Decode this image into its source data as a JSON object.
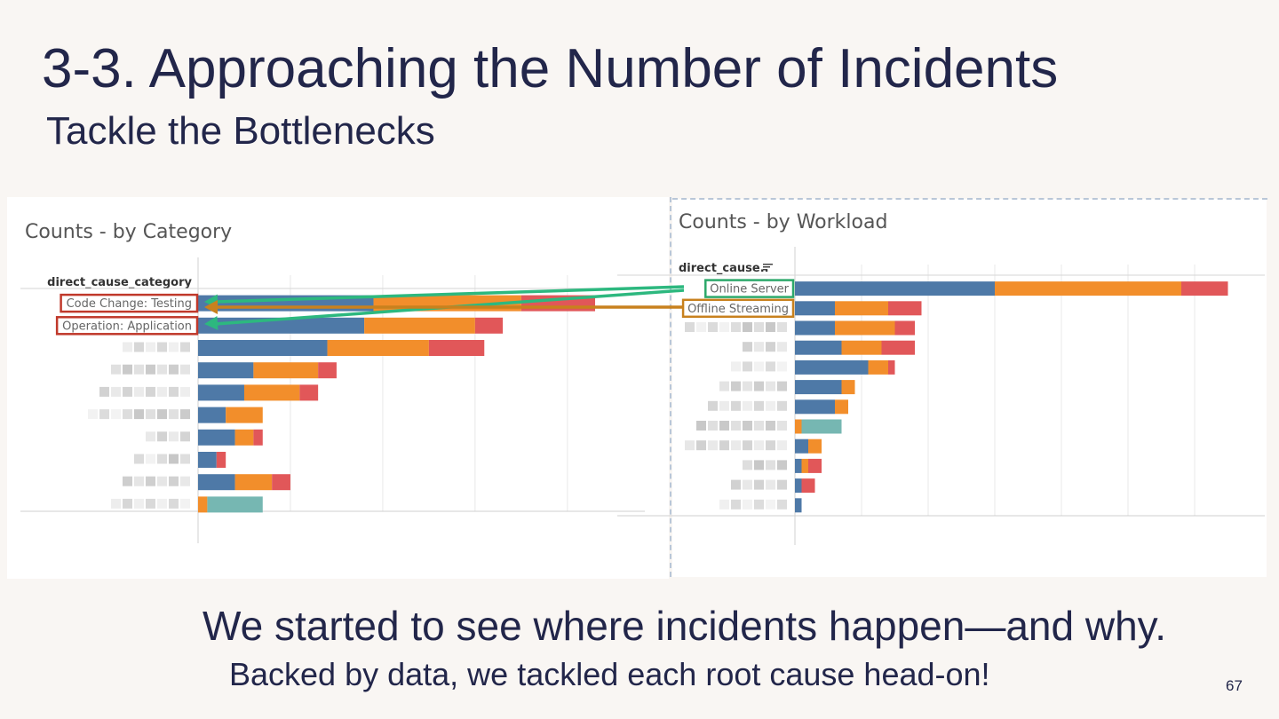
{
  "slide": {
    "title": "3-3. Approaching the Number of Incidents",
    "subtitle": "Tackle the Bottlenecks",
    "footer_line1": "We started to see where incidents happen—and why.",
    "footer_line2": "Backed by data, we tackled each root cause head-on!",
    "page_number": "67"
  },
  "colors": {
    "blue": "#4e79a7",
    "orange": "#f28e2b",
    "red": "#e15759",
    "teal": "#76b7b2",
    "highlight_red": "#c0392b",
    "highlight_green": "#2ca86a",
    "highlight_orange": "#c8811e",
    "arrow_green": "#2db87f",
    "arrow_orange": "#c8811e"
  },
  "chart_data": [
    {
      "type": "bar",
      "stacked": true,
      "orientation": "horizontal",
      "title": "Counts - by Category",
      "row_header": "direct_cause_category",
      "categories": [
        "Code Change: Testing",
        "Operation: Application",
        "",
        "",
        "",
        "",
        "",
        "",
        "",
        ""
      ],
      "series": [
        {
          "color": "blue",
          "values": [
            19.0,
            18.0,
            14.0,
            6.0,
            5.0,
            3.0,
            4.0,
            2.0,
            4.0,
            0.0
          ]
        },
        {
          "color": "orange",
          "values": [
            16.0,
            12.0,
            11.0,
            7.0,
            6.0,
            4.0,
            2.0,
            0.0,
            4.0,
            1.0
          ]
        },
        {
          "color": "red",
          "values": [
            8.0,
            3.0,
            6.0,
            2.0,
            2.0,
            0.0,
            1.0,
            1.0,
            2.0,
            0.0
          ]
        },
        {
          "color": "teal",
          "values": [
            0.0,
            0.0,
            0.0,
            0.0,
            0.0,
            0.0,
            0.0,
            0.0,
            0.0,
            6.0
          ]
        }
      ],
      "xlim": [
        0,
        48
      ],
      "gridlines_x": [
        10,
        20,
        30,
        40
      ],
      "grid": true,
      "highlighted": [
        "Code Change: Testing",
        "Operation: Application"
      ]
    },
    {
      "type": "bar",
      "stacked": true,
      "orientation": "horizontal",
      "title": "Counts - by Workload",
      "row_header": "direct_cause..",
      "categories": [
        "Online Server",
        "Offline Streaming",
        "",
        "",
        "",
        "",
        "",
        "",
        "",
        "",
        "",
        ""
      ],
      "series": [
        {
          "color": "blue",
          "values": [
            30.0,
            6.0,
            6.0,
            7.0,
            11.0,
            7.0,
            6.0,
            0.0,
            2.0,
            1.0,
            1.0,
            1.0
          ]
        },
        {
          "color": "orange",
          "values": [
            28.0,
            8.0,
            9.0,
            6.0,
            3.0,
            2.0,
            2.0,
            1.0,
            2.0,
            1.0,
            0.0,
            0.0
          ]
        },
        {
          "color": "red",
          "values": [
            7.0,
            5.0,
            3.0,
            5.0,
            1.0,
            0.0,
            0.0,
            0.0,
            0.0,
            2.0,
            2.0,
            0.0
          ]
        },
        {
          "color": "teal",
          "values": [
            0.0,
            0.0,
            0.0,
            0.0,
            0.0,
            0.0,
            0.0,
            6.0,
            0.0,
            0.0,
            0.0,
            0.0
          ]
        }
      ],
      "xlim": [
        0,
        70
      ],
      "gridlines_x": [
        10,
        20,
        30,
        40,
        50,
        60
      ],
      "grid": true,
      "highlighted": [
        "Online Server",
        "Offline Streaming"
      ]
    }
  ]
}
